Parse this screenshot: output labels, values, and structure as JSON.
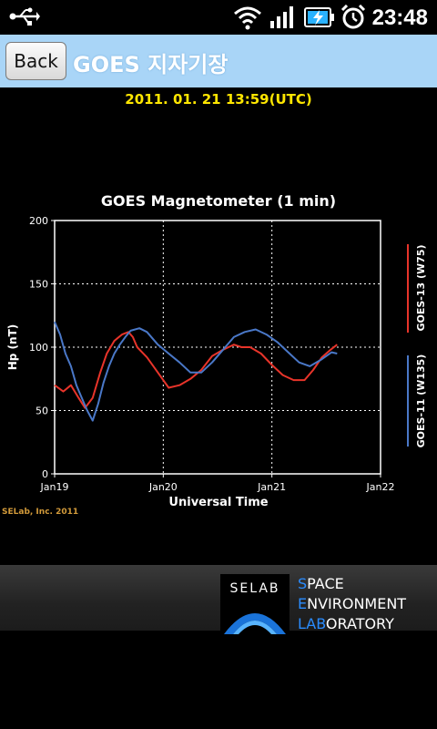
{
  "status_bar": {
    "time": "23:48",
    "icons": [
      "usb-icon",
      "wifi-icon",
      "signal-icon",
      "battery-charging-icon",
      "alarm-clock-icon"
    ]
  },
  "header": {
    "back_label": "Back",
    "title": "GOES 지자기장"
  },
  "timestamp": "2011. 01. 21 13:59(UTC)",
  "colors": {
    "title_bar": "#a9d5f7",
    "timestamp": "#ffe600",
    "goes13": "#e8342a",
    "goes11": "#4a78c8",
    "credit": "#d29a3a"
  },
  "chart_data": {
    "type": "line",
    "title": "GOES Magnetometer (1 min)",
    "xlabel": "Universal Time",
    "ylabel": "Hp (nT)",
    "credit": "SELab, Inc. 2011",
    "xticks": [
      "Jan19",
      "Jan20",
      "Jan21",
      "Jan22"
    ],
    "yticks": [
      0,
      50,
      100,
      150,
      200
    ],
    "xlim": [
      0,
      3
    ],
    "ylim": [
      0,
      200
    ],
    "grid": true,
    "legend_position": "right",
    "series": [
      {
        "name": "GOES-13 (W75)",
        "color": "#e8342a",
        "x": [
          0.0,
          0.08,
          0.15,
          0.22,
          0.28,
          0.35,
          0.42,
          0.48,
          0.55,
          0.62,
          0.68,
          0.72,
          0.76,
          0.85,
          0.95,
          1.05,
          1.15,
          1.25,
          1.35,
          1.45,
          1.55,
          1.65,
          1.72,
          1.8,
          1.9,
          2.0,
          2.1,
          2.2,
          2.3,
          2.38,
          2.46,
          2.54,
          2.6
        ],
        "y": [
          70,
          65,
          70,
          60,
          52,
          60,
          80,
          95,
          105,
          110,
          112,
          108,
          100,
          92,
          80,
          68,
          70,
          75,
          82,
          93,
          98,
          102,
          100,
          100,
          95,
          86,
          78,
          74,
          74,
          82,
          92,
          98,
          102
        ]
      },
      {
        "name": "GOES-11 (W135)",
        "color": "#4a78c8",
        "x": [
          0.0,
          0.05,
          0.1,
          0.15,
          0.2,
          0.25,
          0.3,
          0.35,
          0.4,
          0.45,
          0.5,
          0.55,
          0.6,
          0.65,
          0.7,
          0.78,
          0.85,
          0.95,
          1.05,
          1.15,
          1.25,
          1.35,
          1.45,
          1.55,
          1.65,
          1.75,
          1.85,
          1.95,
          2.05,
          2.15,
          2.25,
          2.35,
          2.45,
          2.55,
          2.6
        ],
        "y": [
          120,
          110,
          95,
          85,
          70,
          60,
          50,
          42,
          55,
          72,
          85,
          95,
          102,
          108,
          113,
          115,
          112,
          102,
          95,
          88,
          80,
          80,
          88,
          98,
          108,
          112,
          114,
          110,
          104,
          96,
          88,
          85,
          90,
          96,
          95
        ]
      }
    ]
  },
  "footer": {
    "logo_text": "SELAB",
    "org_lines": [
      {
        "initial": "S",
        "rest": "PACE"
      },
      {
        "initial": "E",
        "rest": "NVIRONMENT"
      },
      {
        "initial": "LAB",
        "rest": "ORATORY"
      }
    ]
  }
}
